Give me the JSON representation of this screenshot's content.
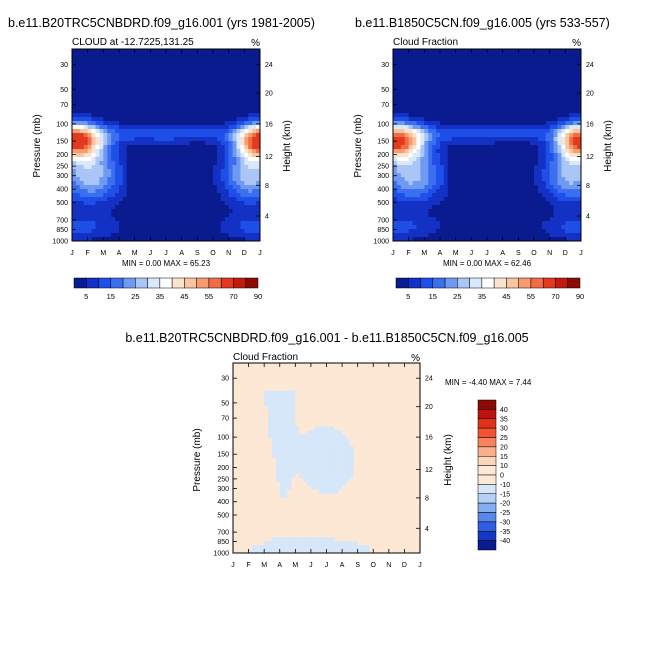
{
  "chart_data": [
    {
      "type": "heatmap",
      "title": "b.e11.B20TRC5CNBDRD.f09_g16.001 (yrs 1981-2005)",
      "subtitle": "CLOUD at -12.7225,131.25",
      "units": "%",
      "xlabel": "",
      "ylabel": "Pressure (mb)",
      "ylabel_right": "Height (km)",
      "x_ticks": [
        "J",
        "F",
        "M",
        "A",
        "M",
        "J",
        "J",
        "A",
        "S",
        "O",
        "N",
        "D",
        "J"
      ],
      "y_ticks": [
        "30",
        "50",
        "70",
        "100",
        "150",
        "200",
        "250",
        "300",
        "400",
        "500",
        "700",
        "850",
        "1000"
      ],
      "y_ticks_right": [
        "24",
        "20",
        "16",
        "12",
        "8",
        "4"
      ],
      "stats": "MIN =   0.00 MAX =  65.23",
      "colorbar_labels": [
        "5",
        "15",
        "25",
        "35",
        "45",
        "55",
        "70",
        "90"
      ],
      "min": 0.0,
      "max": 65.23
    },
    {
      "type": "heatmap",
      "title": "b.e11.B1850C5CN.f09_g16.005 (yrs 533-557)",
      "subtitle": "Cloud Fraction",
      "units": "%",
      "xlabel": "",
      "ylabel": "Pressure (mb)",
      "ylabel_right": "Height (km)",
      "x_ticks": [
        "J",
        "F",
        "M",
        "A",
        "M",
        "J",
        "J",
        "A",
        "S",
        "O",
        "N",
        "D",
        "J"
      ],
      "y_ticks": [
        "30",
        "50",
        "70",
        "100",
        "150",
        "200",
        "250",
        "300",
        "400",
        "500",
        "700",
        "850",
        "1000"
      ],
      "y_ticks_right": [
        "24",
        "20",
        "16",
        "12",
        "8",
        "4"
      ],
      "stats": "MIN =   0.00 MAX =  62.46",
      "colorbar_labels": [
        "5",
        "15",
        "25",
        "35",
        "45",
        "55",
        "70",
        "90"
      ],
      "min": 0.0,
      "max": 62.46
    },
    {
      "type": "heatmap",
      "title": "b.e11.B20TRC5CNBDRD.f09_g16.001 - b.e11.B1850C5CN.f09_g16.005",
      "subtitle": "Cloud Fraction",
      "units": "%",
      "xlabel": "",
      "ylabel": "Pressure (mb)",
      "ylabel_right": "Height (km)",
      "x_ticks": [
        "J",
        "F",
        "M",
        "A",
        "M",
        "J",
        "J",
        "A",
        "S",
        "O",
        "N",
        "D",
        "J"
      ],
      "y_ticks": [
        "30",
        "50",
        "70",
        "100",
        "150",
        "200",
        "250",
        "300",
        "400",
        "500",
        "700",
        "850",
        "1000"
      ],
      "y_ticks_right": [
        "24",
        "20",
        "16",
        "12",
        "8",
        "4"
      ],
      "stats": "MIN =  -4.40 MAX =   7.44",
      "colorbar_labels": [
        "40",
        "35",
        "30",
        "25",
        "20",
        "15",
        "10",
        "0",
        "-10",
        "-15",
        "-20",
        "-25",
        "-30",
        "-35",
        "-40"
      ],
      "min": -4.4,
      "max": 7.44
    }
  ],
  "colors": {
    "seq": [
      "#0a1a8f",
      "#1331c4",
      "#1e4fe8",
      "#3b6ff0",
      "#6e9af3",
      "#a9c6f6",
      "#d9e8fa",
      "#ffffff",
      "#fbe4cf",
      "#f9c4a0",
      "#f79c6e",
      "#f26c45",
      "#e3391f",
      "#c11a0e",
      "#8a0a05"
    ],
    "div": [
      "#8a0a05",
      "#b8160c",
      "#e0321a",
      "#f25330",
      "#f7845c",
      "#f9b08a",
      "#fcd6bb",
      "#fde8d6",
      "#d6e7fa",
      "#b4d0f6",
      "#85adf1",
      "#5788ec",
      "#2f5fe0",
      "#1339c4",
      "#0a1a8f"
    ],
    "background": "#ffffff"
  }
}
